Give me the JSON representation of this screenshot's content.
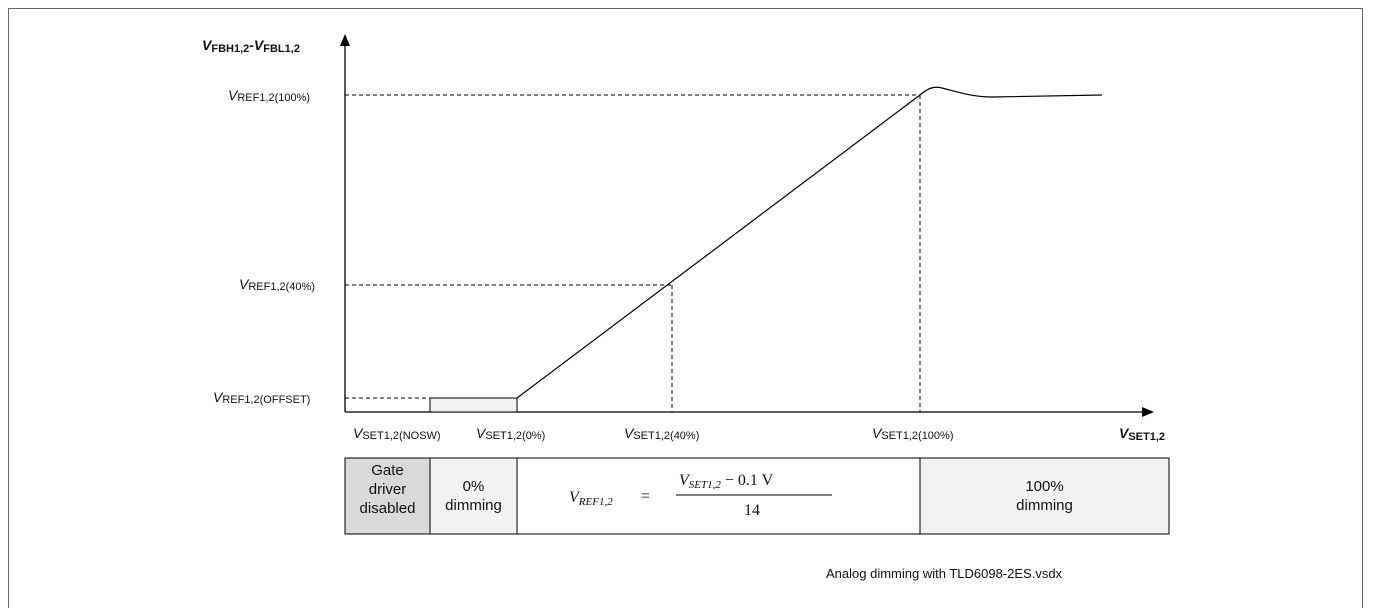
{
  "axes": {
    "y_main": "V",
    "y_sub1": "FBH1,2",
    "y_sep": "-",
    "y_main2": "V",
    "y_sub2": "FBL1,2",
    "x_main": "V",
    "x_sub": "SET1,2"
  },
  "y_ticks": [
    {
      "main": "V",
      "sub": "REF1,2(100%)"
    },
    {
      "main": "V",
      "sub": "REF1,2(40%)"
    },
    {
      "main": "V",
      "sub": "REF1,2(OFFSET)"
    }
  ],
  "x_ticks": [
    {
      "main": "V",
      "sub": "SET1,2(NOSW)"
    },
    {
      "main": "V",
      "sub": "SET1,2(0%)"
    },
    {
      "main": "V",
      "sub": "SET1,2(40%)"
    },
    {
      "main": "V",
      "sub": "SET1,2(100%)"
    }
  ],
  "table": {
    "cell1": [
      "Gate",
      "driver",
      "disabled"
    ],
    "cell2": [
      "0%",
      "dimming"
    ],
    "formula": {
      "lhs_main": "V",
      "lhs_sub": "REF1,2",
      "equals": "=",
      "num_main": "V",
      "num_sub": "SET1,2",
      "num_rest": " − 0.1 V",
      "den": "14"
    },
    "cell4": [
      "100%",
      "dimming"
    ]
  },
  "colors": {
    "gate_cell": "#d9d9d9",
    "shaded_cell": "#f2f2f2",
    "line": "#000000"
  },
  "footer": "Analog dimming with TLD6098-2ES.vsdx"
}
